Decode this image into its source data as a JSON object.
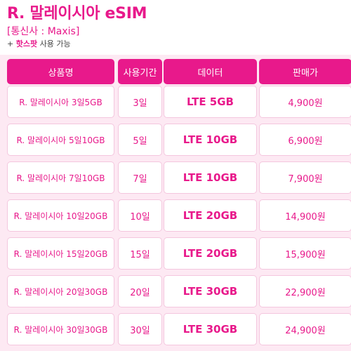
{
  "header": {
    "title": "R. 말레이시아 eSIM",
    "carrier": "[통신사 : Maxis]",
    "hotspot_prefix": "+ ",
    "hotspot_highlight": "핫스팟",
    "hotspot_suffix": " 사용 가능"
  },
  "table": {
    "columns": [
      "상품명",
      "사용기간",
      "데이터",
      "판매가"
    ],
    "rows": [
      {
        "product": "R. 말레이시아 3일5GB",
        "period": "3일",
        "data": "LTE 5GB",
        "price": "4,900원"
      },
      {
        "product": "R. 말레이시아 5일10GB",
        "period": "5일",
        "data": "LTE 10GB",
        "price": "6,900원"
      },
      {
        "product": "R. 말레이시아 7일10GB",
        "period": "7일",
        "data": "LTE 10GB",
        "price": "7,900원"
      },
      {
        "product": "R. 말레이시아 10일20GB",
        "period": "10일",
        "data": "LTE 20GB",
        "price": "14,900원"
      },
      {
        "product": "R. 말레이시아 15일20GB",
        "period": "15일",
        "data": "LTE 20GB",
        "price": "15,900원"
      },
      {
        "product": "R. 말레이시아 20일30GB",
        "period": "20일",
        "data": "LTE 30GB",
        "price": "22,900원"
      },
      {
        "product": "R. 말레이시아 30일30GB",
        "period": "30일",
        "data": "LTE 30GB",
        "price": "24,900원"
      }
    ]
  },
  "colors": {
    "accent": "#e8198b",
    "table_background": "#fde9f3"
  }
}
